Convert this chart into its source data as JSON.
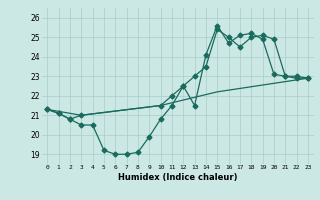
{
  "title": "",
  "xlabel": "Humidex (Indice chaleur)",
  "ylabel": "",
  "xlim": [
    -0.5,
    23.5
  ],
  "ylim": [
    18.5,
    26.5
  ],
  "yticks": [
    19,
    20,
    21,
    22,
    23,
    24,
    25,
    26
  ],
  "xticks": [
    0,
    1,
    2,
    3,
    4,
    5,
    6,
    7,
    8,
    9,
    10,
    11,
    12,
    13,
    14,
    15,
    16,
    17,
    18,
    19,
    20,
    21,
    22,
    23
  ],
  "bg_color": "#cce8e4",
  "line_color": "#1a6b5e",
  "grid_color": "#aacccc",
  "line1_x": [
    0,
    1,
    2,
    3,
    4,
    5,
    6,
    7,
    8,
    9,
    10,
    11,
    12,
    13,
    14,
    15,
    16,
    17,
    18,
    19,
    20,
    21,
    22,
    23
  ],
  "line1_y": [
    21.3,
    21.1,
    20.8,
    20.5,
    20.5,
    19.2,
    19.0,
    19.0,
    19.1,
    19.9,
    20.8,
    21.5,
    22.5,
    21.5,
    24.1,
    25.6,
    24.7,
    25.1,
    25.2,
    24.9,
    23.1,
    23.0,
    23.0,
    22.9
  ],
  "line2_x": [
    0,
    1,
    2,
    3,
    10,
    11,
    12,
    13,
    14,
    15,
    16,
    17,
    18,
    19,
    20,
    21,
    22,
    23
  ],
  "line2_y": [
    21.3,
    21.1,
    20.8,
    21.0,
    21.5,
    22.0,
    22.5,
    23.0,
    23.5,
    25.4,
    25.0,
    24.5,
    25.0,
    25.1,
    24.9,
    23.0,
    22.9,
    22.9
  ],
  "line3_x": [
    0,
    3,
    10,
    15,
    23
  ],
  "line3_y": [
    21.3,
    21.0,
    21.5,
    22.2,
    22.9
  ]
}
